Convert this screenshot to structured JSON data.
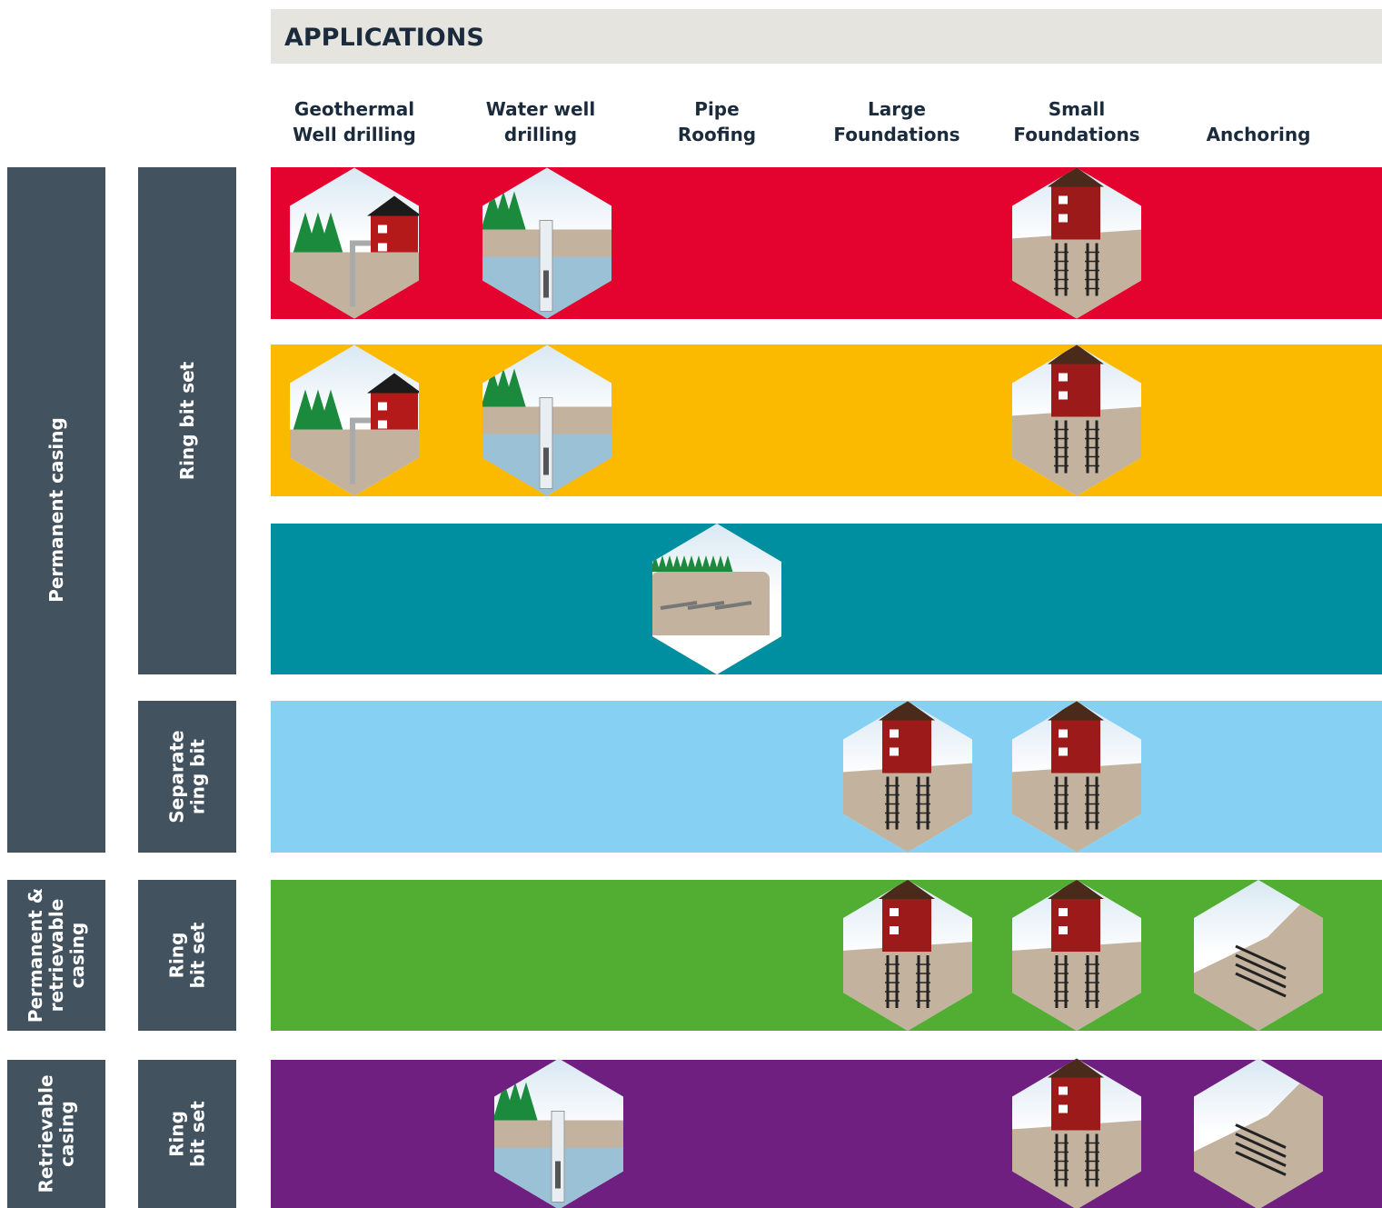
{
  "header": {
    "title": "APPLICATIONS"
  },
  "columns": [
    [
      "Geothermal",
      "Well drilling"
    ],
    [
      "Water well",
      "drilling"
    ],
    [
      "Pipe",
      "Roofing"
    ],
    [
      "Large",
      "Foundations"
    ],
    [
      "Small",
      "Foundations"
    ],
    [
      "Anchoring"
    ]
  ],
  "groups": [
    [
      "Permanent casing"
    ],
    [
      "Permanent &",
      "retrievable",
      "casing"
    ],
    [
      "Retrievable",
      "casing"
    ]
  ],
  "subgroups": [
    [
      "Ring bit set"
    ],
    [
      "Separate",
      "ring bit"
    ],
    [
      "Ring",
      "bit set"
    ],
    [
      "Ring",
      "bit set"
    ]
  ],
  "rows": [
    {
      "color": "#e4032e"
    },
    {
      "color": "#fbb900"
    },
    {
      "color": "#008fa0"
    },
    {
      "color": "#85d0f3"
    },
    {
      "color": "#52ae32"
    },
    {
      "color": "#6f1f7f"
    }
  ]
}
